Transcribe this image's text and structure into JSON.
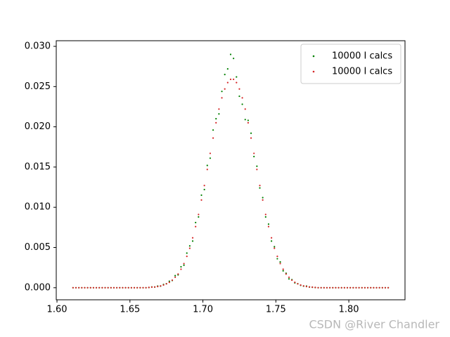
{
  "chart_data": {
    "type": "scatter",
    "x": [
      1.611,
      1.613,
      1.615,
      1.617,
      1.619,
      1.621,
      1.623,
      1.625,
      1.627,
      1.629,
      1.631,
      1.633,
      1.635,
      1.637,
      1.639,
      1.641,
      1.643,
      1.645,
      1.647,
      1.649,
      1.651,
      1.653,
      1.655,
      1.657,
      1.659,
      1.661,
      1.663,
      1.665,
      1.667,
      1.669,
      1.671,
      1.673,
      1.675,
      1.677,
      1.679,
      1.681,
      1.683,
      1.685,
      1.687,
      1.689,
      1.691,
      1.693,
      1.695,
      1.697,
      1.699,
      1.701,
      1.703,
      1.705,
      1.707,
      1.709,
      1.711,
      1.713,
      1.715,
      1.717,
      1.719,
      1.721,
      1.723,
      1.725,
      1.727,
      1.729,
      1.731,
      1.733,
      1.735,
      1.737,
      1.739,
      1.741,
      1.743,
      1.745,
      1.747,
      1.749,
      1.751,
      1.753,
      1.755,
      1.757,
      1.759,
      1.761,
      1.763,
      1.765,
      1.767,
      1.769,
      1.771,
      1.773,
      1.775,
      1.777,
      1.779,
      1.781,
      1.783,
      1.785,
      1.787,
      1.789,
      1.791,
      1.793,
      1.795,
      1.797,
      1.799,
      1.801,
      1.803,
      1.805,
      1.807,
      1.809,
      1.811,
      1.813,
      1.815,
      1.817,
      1.819,
      1.821,
      1.823,
      1.825,
      1.827
    ],
    "series": [
      {
        "name": "10000 I calcs",
        "color": "#008000",
        "values": [
          0,
          0,
          0,
          0,
          0,
          0,
          0,
          0,
          0,
          0,
          0,
          0,
          0,
          0,
          0,
          0,
          0,
          0,
          0,
          0,
          0,
          0,
          0,
          0,
          0,
          0,
          3e-05,
          0.0001,
          8e-05,
          0.0002,
          0.0002,
          0.0004,
          0.0005,
          0.0008,
          0.0009,
          0.0015,
          0.0016,
          0.0026,
          0.0028,
          0.0043,
          0.0052,
          0.0058,
          0.0081,
          0.0088,
          0.0115,
          0.0122,
          0.0152,
          0.0161,
          0.0196,
          0.021,
          0.0216,
          0.0244,
          0.0265,
          0.0272,
          0.029,
          0.0285,
          0.0262,
          0.0238,
          0.0228,
          0.0209,
          0.0208,
          0.0192,
          0.0163,
          0.0151,
          0.0124,
          0.0112,
          0.0088,
          0.0079,
          0.0058,
          0.0051,
          0.0036,
          0.0032,
          0.0021,
          0.0018,
          0.0011,
          0.001,
          0.0006,
          0.0005,
          0.0003,
          0.0002,
          0.0002,
          8e-05,
          6e-05,
          2e-05,
          0,
          0,
          0,
          0,
          0,
          0,
          0,
          0,
          0,
          0,
          0,
          0,
          0,
          0,
          0,
          0,
          0,
          0,
          0,
          0,
          0,
          0,
          0,
          0,
          0
        ]
      },
      {
        "name": "10000 I calcs",
        "color": "#d62728",
        "values": [
          0,
          0,
          0,
          0,
          0,
          0,
          0,
          0,
          0,
          0,
          0,
          0,
          0,
          0,
          0,
          0,
          0,
          0,
          0,
          0,
          0,
          0,
          0,
          0,
          0,
          0,
          4e-05,
          7e-05,
          0.0001,
          0.00015,
          0.00023,
          0.00033,
          0.00048,
          0.00067,
          0.00094,
          0.0013,
          0.0017,
          0.0023,
          0.003,
          0.0039,
          0.0049,
          0.0062,
          0.0076,
          0.0091,
          0.0109,
          0.0127,
          0.0147,
          0.0167,
          0.0186,
          0.0205,
          0.0222,
          0.0236,
          0.0247,
          0.0255,
          0.0259,
          0.0259,
          0.0255,
          0.0247,
          0.0236,
          0.0222,
          0.0205,
          0.0186,
          0.0167,
          0.0147,
          0.0127,
          0.0109,
          0.0091,
          0.0076,
          0.0062,
          0.0049,
          0.0039,
          0.003,
          0.0023,
          0.0017,
          0.0013,
          0.00094,
          0.00067,
          0.00048,
          0.00033,
          0.00023,
          0.00015,
          0.0001,
          7e-05,
          4e-05,
          0,
          0,
          0,
          0,
          0,
          0,
          0,
          0,
          0,
          0,
          0,
          0,
          0,
          0,
          0,
          0,
          0,
          0,
          0,
          0,
          0,
          0,
          0,
          0,
          0
        ]
      }
    ],
    "xlim": [
      1.5995,
      1.8385
    ],
    "ylim": [
      -0.0015,
      0.0307
    ],
    "xticks": [
      {
        "value": 1.6,
        "label": "1.60"
      },
      {
        "value": 1.65,
        "label": "1.65"
      },
      {
        "value": 1.7,
        "label": "1.70"
      },
      {
        "value": 1.75,
        "label": "1.75"
      },
      {
        "value": 1.8,
        "label": "1.80"
      }
    ],
    "yticks": [
      {
        "value": 0,
        "label": "0.000"
      },
      {
        "value": 0.005,
        "label": "0.005"
      },
      {
        "value": 0.01,
        "label": "0.010"
      },
      {
        "value": 0.015,
        "label": "0.015"
      },
      {
        "value": 0.02,
        "label": "0.020"
      },
      {
        "value": 0.025,
        "label": "0.025"
      },
      {
        "value": 0.03,
        "label": "0.030"
      }
    ],
    "legend": "upper right",
    "watermark": "CSDN @River Chandler"
  }
}
